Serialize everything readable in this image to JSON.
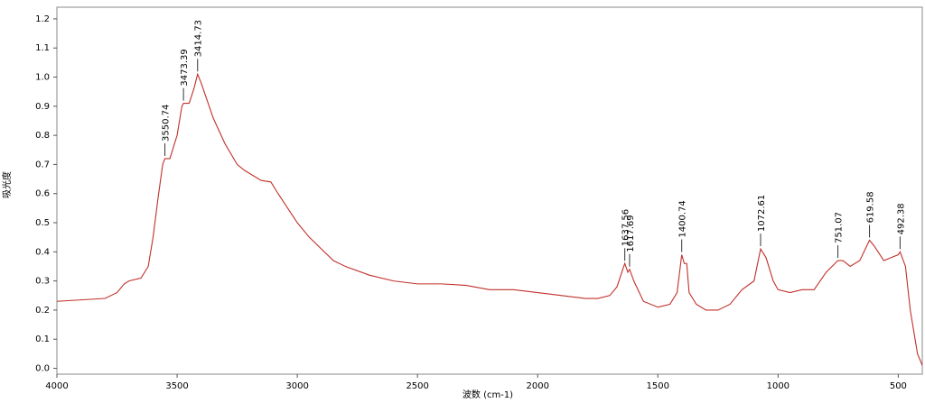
{
  "chart_data": {
    "type": "line",
    "x_label": "波数 (cm-1)",
    "y_label": "吸光度",
    "color": "#c0302a",
    "xlim": [
      4000,
      400
    ],
    "ylim": [
      -0.02,
      1.24
    ],
    "xticks": [
      4000,
      3500,
      3000,
      2500,
      2000,
      1500,
      1000,
      500
    ],
    "yticks": [
      {
        "value": 0,
        "label": "0.0"
      },
      0.1,
      0.2,
      0.3,
      0.4,
      0.5,
      0.6,
      0.7,
      0.8,
      0.9,
      {
        "value": 1,
        "label": "1.0"
      },
      1.1,
      1.2
    ],
    "x": [
      4000,
      3900,
      3800,
      3750,
      3720,
      3700,
      3650,
      3620,
      3600,
      3580,
      3560,
      3550.74,
      3530,
      3500,
      3480,
      3473.39,
      3450,
      3430,
      3414.73,
      3400,
      3350,
      3300,
      3250,
      3220,
      3200,
      3150,
      3110,
      3080,
      3000,
      2950,
      2900,
      2850,
      2800,
      2700,
      2600,
      2500,
      2400,
      2300,
      2200,
      2100,
      2000,
      1900,
      1800,
      1750,
      1700,
      1670,
      1650,
      1637.56,
      1625,
      1617.69,
      1600,
      1560,
      1500,
      1450,
      1420,
      1400.74,
      1390,
      1380,
      1370,
      1340,
      1300,
      1250,
      1200,
      1150,
      1100,
      1072.61,
      1050,
      1020,
      1000,
      950,
      900,
      850,
      800,
      751.07,
      730,
      700,
      660,
      619.58,
      600,
      560,
      530,
      500,
      492.38,
      470,
      450,
      420,
      400
    ],
    "values": [
      0.23,
      0.235,
      0.24,
      0.26,
      0.29,
      0.3,
      0.31,
      0.35,
      0.45,
      0.58,
      0.7,
      0.72,
      0.72,
      0.8,
      0.9,
      0.91,
      0.91,
      0.96,
      1.01,
      0.98,
      0.86,
      0.77,
      0.7,
      0.68,
      0.67,
      0.645,
      0.64,
      0.6,
      0.5,
      0.45,
      0.41,
      0.37,
      0.35,
      0.32,
      0.3,
      0.29,
      0.29,
      0.285,
      0.27,
      0.27,
      0.26,
      0.25,
      0.24,
      0.24,
      0.25,
      0.28,
      0.33,
      0.36,
      0.33,
      0.34,
      0.3,
      0.23,
      0.21,
      0.22,
      0.26,
      0.39,
      0.36,
      0.36,
      0.26,
      0.22,
      0.2,
      0.2,
      0.22,
      0.27,
      0.3,
      0.41,
      0.38,
      0.3,
      0.27,
      0.26,
      0.27,
      0.27,
      0.33,
      0.37,
      0.37,
      0.35,
      0.37,
      0.44,
      0.42,
      0.37,
      0.38,
      0.39,
      0.4,
      0.35,
      0.2,
      0.05,
      0.01
    ],
    "annotations": [
      {
        "text": "3550.74",
        "x": 3550.74,
        "y": 0.72
      },
      {
        "text": "3473.39",
        "x": 3473.39,
        "y": 0.91
      },
      {
        "text": "3414.73",
        "x": 3414.73,
        "y": 1.01
      },
      {
        "text": "1637.56",
        "x": 1637.56,
        "y": 0.36
      },
      {
        "text": "1617.69",
        "x": 1617.69,
        "y": 0.34
      },
      {
        "text": "1400.74",
        "x": 1400.74,
        "y": 0.39
      },
      {
        "text": "1072.61",
        "x": 1072.61,
        "y": 0.41
      },
      {
        "text": "751.07",
        "x": 751.07,
        "y": 0.37
      },
      {
        "text": "619.58",
        "x": 619.58,
        "y": 0.44
      },
      {
        "text": "492.38",
        "x": 492.38,
        "y": 0.4
      }
    ]
  }
}
